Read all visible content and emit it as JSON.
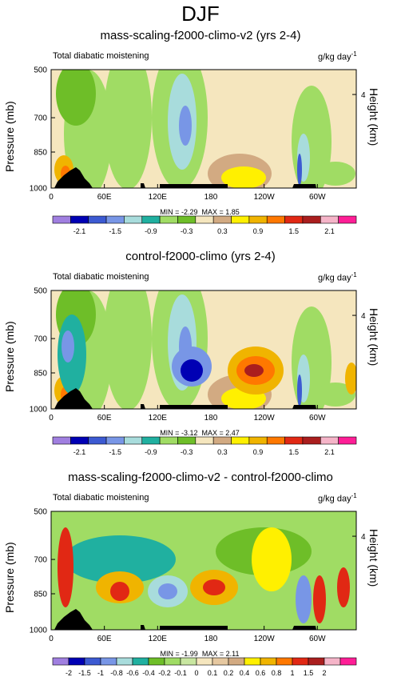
{
  "title": "DJF",
  "colors": {
    "levels_palette": [
      "#a07fe0",
      "#0000b4",
      "#3c5ad2",
      "#7896e6",
      "#a8dcdc",
      "#20b0a0",
      "#a0dc64",
      "#6ebe28",
      "#f5e6be",
      "#d2aa82",
      "#fff000",
      "#f0b400",
      "#ff7800",
      "#e12814",
      "#aa1e1e",
      "#f5b4c8",
      "#ff1e96"
    ],
    "land": "#000000"
  },
  "y_axis": {
    "label": "Pressure (mb)",
    "ticks": [
      "500",
      "700",
      "850",
      "1000"
    ]
  },
  "right_axis": {
    "label": "Height (km)",
    "ticks": [
      "4"
    ]
  },
  "x_axis": {
    "ticks": [
      "0",
      "60E",
      "120E",
      "180",
      "120W",
      "60W"
    ]
  },
  "panels": [
    {
      "title": "mass-scaling-f2000-climo-v2 (yrs 2-4)",
      "var": "Total diabatic moistening",
      "units": "g/kg day",
      "units_exp": "-1",
      "min_label": "MIN =",
      "min": "-2.29",
      "max_label": "MAX =",
      "max": "1.85",
      "colorbar_labels": [
        "-2.1",
        "-1.5",
        "-0.9",
        "-0.3",
        "0.3",
        "0.9",
        "1.5",
        "2.1"
      ]
    },
    {
      "title": "control-f2000-climo (yrs 2-4)",
      "var": "Total diabatic moistening",
      "units": "g/kg day",
      "units_exp": "-1",
      "min_label": "MIN =",
      "min": "-3.12",
      "max_label": "MAX =",
      "max": "2.47",
      "colorbar_labels": [
        "-2.1",
        "-1.5",
        "-0.9",
        "-0.3",
        "0.3",
        "0.9",
        "1.5",
        "2.1"
      ]
    },
    {
      "title": "mass-scaling-f2000-climo-v2 - control-f2000-climo",
      "var": "Total diabatic moistening",
      "units": "g/kg day",
      "units_exp": "-1",
      "min_label": "MIN =",
      "min": "-1.99",
      "max_label": "MAX =",
      "max": "2.11",
      "colorbar_labels": [
        "-2",
        "-1.5",
        "-1",
        "-0.8",
        "-0.6",
        "-0.4",
        "-0.2",
        "-0.1",
        "0",
        "0.1",
        "0.2",
        "0.4",
        "0.6",
        "0.8",
        "1",
        "1.5",
        "2"
      ]
    }
  ]
}
